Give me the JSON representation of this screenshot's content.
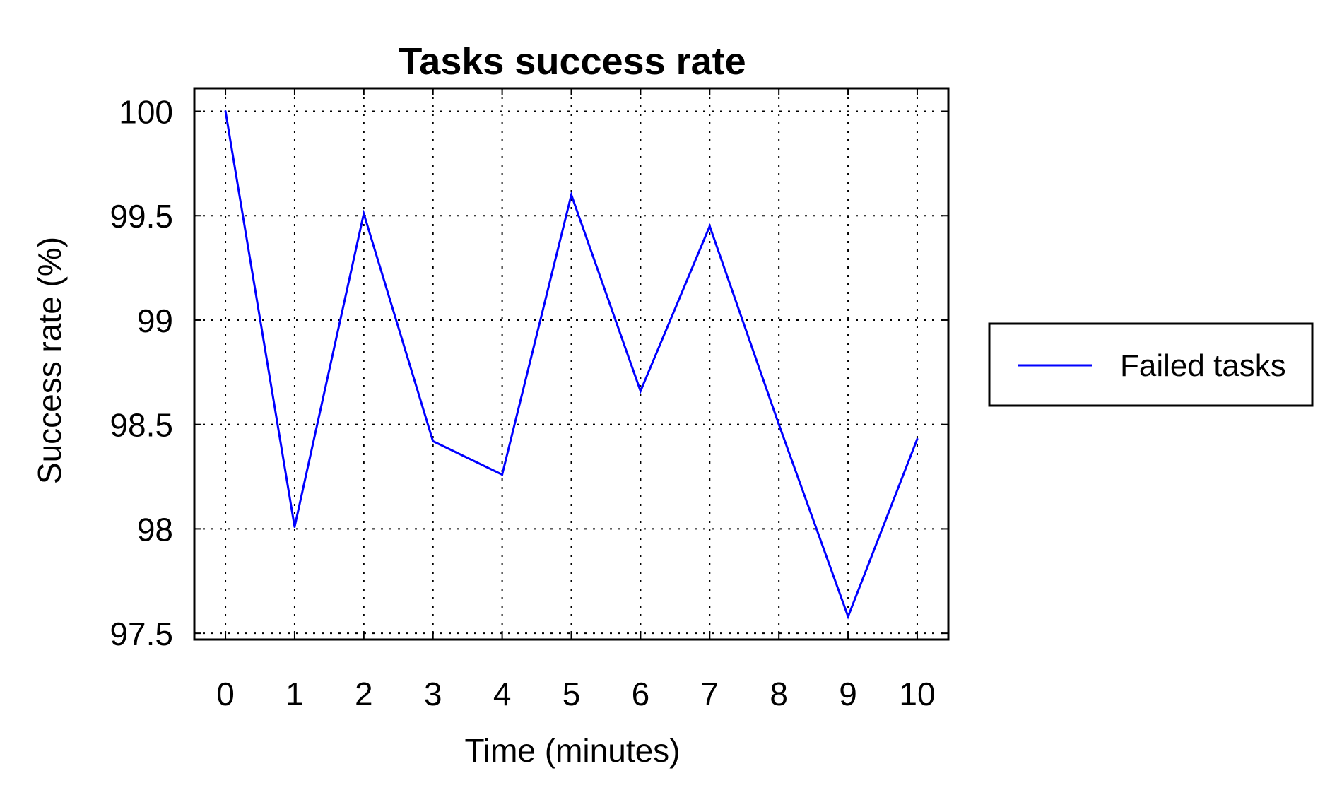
{
  "chart_data": {
    "type": "line",
    "title": "Tasks success rate",
    "xlabel": "Time (minutes)",
    "ylabel": "Success rate (%)",
    "xlim": [
      -0.45,
      10.45
    ],
    "ylim": [
      97.47,
      100.11
    ],
    "xticks": [
      0,
      1,
      2,
      3,
      4,
      5,
      6,
      7,
      8,
      9,
      10
    ],
    "xtick_labels": [
      "0",
      "1",
      "2",
      "3",
      "4",
      "5",
      "6",
      "7",
      "8",
      "9",
      "10"
    ],
    "yticks": [
      97.5,
      98,
      98.5,
      99,
      99.5,
      100
    ],
    "ytick_labels": [
      "97.5",
      "98",
      "98.5",
      "99",
      "99.5",
      "100"
    ],
    "grid": true,
    "legend_position": "outside-right",
    "series": [
      {
        "name": "Failed tasks",
        "color": "#0000ff",
        "x": [
          0,
          1,
          2,
          3,
          4,
          5,
          6,
          7,
          8,
          9,
          10
        ],
        "y": [
          100.0,
          98.01,
          99.51,
          98.42,
          98.26,
          99.6,
          98.66,
          99.45,
          98.5,
          97.58,
          98.43
        ]
      }
    ]
  }
}
